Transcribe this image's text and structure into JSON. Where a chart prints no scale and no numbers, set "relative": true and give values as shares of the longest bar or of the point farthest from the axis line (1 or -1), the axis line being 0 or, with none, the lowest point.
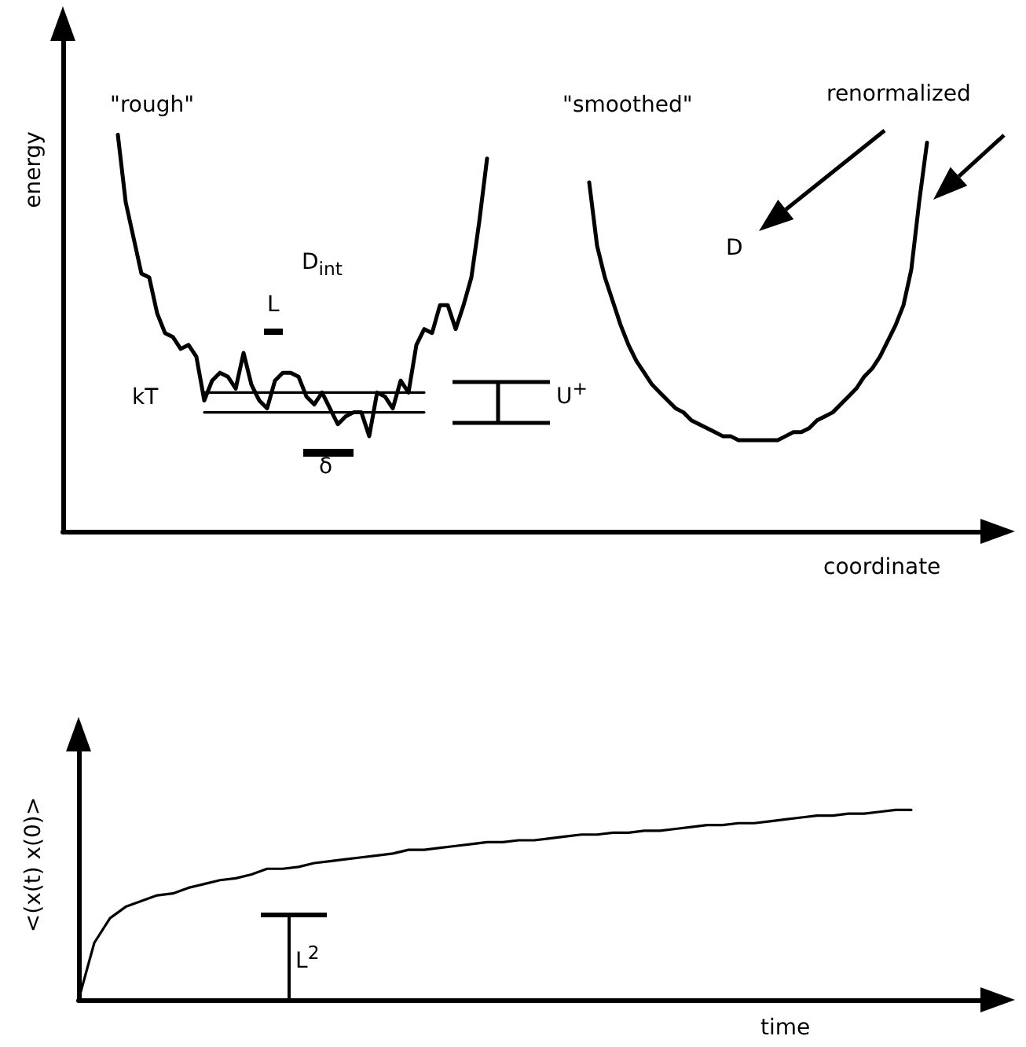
{
  "chart_data": [
    {
      "type": "line",
      "relative": true,
      "xlabel": "coordinate",
      "ylabel": "energy",
      "marker": "none",
      "categories": [
        null,
        null,
        null,
        null,
        null,
        null,
        null,
        null,
        null,
        null,
        null,
        null,
        null,
        null,
        null,
        null,
        null,
        null,
        null,
        null,
        null,
        null,
        null,
        null,
        null,
        null,
        null,
        null,
        null,
        null,
        null,
        null,
        null,
        null,
        null,
        null,
        null,
        null,
        null,
        null,
        null,
        null,
        null,
        null,
        null,
        null,
        null,
        null,
        null,
        null,
        null,
        null,
        null,
        null,
        null,
        null,
        null,
        null,
        null,
        null,
        null,
        null,
        null,
        null,
        null,
        null,
        null,
        null,
        null,
        null,
        null,
        null,
        null,
        null,
        null,
        null,
        null,
        null,
        null,
        null,
        null,
        null,
        null,
        null,
        null,
        null,
        null,
        null,
        null,
        null,
        null,
        null,
        null,
        null,
        null,
        null,
        null,
        null,
        null,
        null,
        null,
        null,
        null,
        null,
        null,
        null,
        null,
        null,
        null,
        null,
        null,
        null,
        null,
        null,
        null,
        null,
        null,
        null,
        null,
        null,
        null
      ],
      "series": [
        {
          "color": "#000000",
          "values": [
            null,
            null,
            null,
            null,
            null,
            null,
            null,
            1,
            0.83,
            0.74,
            0.65,
            0.64,
            0.55,
            0.5,
            0.49,
            0.46,
            0.47,
            0.44,
            0.33,
            0.38,
            0.4,
            0.39,
            0.36,
            0.45,
            0.37,
            0.33,
            0.31,
            0.38,
            0.4,
            0.4,
            0.39,
            0.34,
            0.32,
            0.35,
            0.31,
            0.27,
            0.29,
            0.3,
            0.3,
            0.24,
            0.35,
            0.34,
            0.31,
            0.38,
            0.35,
            0.47,
            0.51,
            0.5,
            0.57,
            0.57,
            0.51,
            0.57,
            0.64,
            0.78,
            0.94,
            null,
            null,
            null,
            null,
            null,
            null,
            null,
            null,
            null,
            null,
            null,
            null,
            null,
            null,
            null,
            null,
            null,
            null,
            null,
            null,
            null,
            null,
            null,
            null,
            null,
            null,
            null,
            null,
            null,
            null,
            null,
            null,
            null,
            null,
            null,
            null,
            null,
            null,
            null,
            null,
            null,
            null,
            null,
            null,
            null,
            null,
            null,
            null,
            null,
            null,
            null,
            null,
            null,
            null,
            null,
            null,
            null,
            null,
            null,
            null,
            null,
            null,
            null,
            null,
            null,
            null
          ]
        },
        {
          "color": "#000000",
          "values": [
            null,
            null,
            null,
            null,
            null,
            null,
            null,
            null,
            null,
            null,
            null,
            null,
            null,
            null,
            null,
            null,
            null,
            null,
            null,
            null,
            null,
            null,
            null,
            null,
            null,
            null,
            null,
            null,
            null,
            null,
            null,
            null,
            null,
            null,
            null,
            null,
            null,
            null,
            null,
            null,
            null,
            null,
            null,
            null,
            null,
            null,
            null,
            null,
            null,
            null,
            null,
            null,
            null,
            null,
            null,
            null,
            null,
            null,
            null,
            null,
            null,
            null,
            null,
            null,
            null,
            null,
            null,
            0.88,
            0.72,
            0.64,
            0.58,
            0.52,
            0.47,
            0.43,
            0.4,
            0.37,
            0.35,
            0.33,
            0.31,
            0.3,
            0.28,
            0.27,
            0.26,
            0.25,
            0.24,
            0.24,
            0.23,
            0.23,
            0.23,
            0.23,
            0.23,
            0.23,
            0.24,
            0.25,
            0.25,
            0.26,
            0.28,
            0.29,
            0.3,
            0.32,
            0.34,
            0.36,
            0.39,
            0.41,
            0.44,
            0.48,
            0.52,
            0.57,
            0.66,
            0.83,
            0.98,
            null,
            null,
            null,
            null,
            null,
            null,
            null,
            null,
            null,
            null
          ]
        },
        {
          "color": "#000000",
          "values": [
            null,
            null,
            null,
            null,
            null,
            null,
            null,
            null,
            null,
            null,
            null,
            null,
            null,
            null,
            null,
            null,
            null,
            null,
            0.35,
            0.35,
            0.35,
            0.35,
            0.35,
            0.35,
            0.35,
            0.35,
            0.35,
            0.35,
            0.35,
            0.35,
            0.35,
            0.35,
            0.35,
            0.35,
            0.35,
            0.35,
            0.35,
            0.35,
            0.35,
            0.35,
            0.35,
            0.35,
            0.35,
            0.35,
            0.35,
            0.35,
            0.35,
            null,
            null,
            null,
            null,
            null,
            null,
            null,
            null,
            null,
            null,
            null,
            null,
            null,
            null,
            null,
            null,
            null,
            null,
            null,
            null,
            null,
            null,
            null,
            null,
            null,
            null,
            null,
            null,
            null,
            null,
            null,
            null,
            null,
            null,
            null,
            null,
            null,
            null,
            null,
            null,
            null,
            null,
            null,
            null,
            null,
            null,
            null,
            null,
            null,
            null,
            null,
            null,
            null,
            null,
            null,
            null,
            null,
            null,
            null,
            null,
            null,
            null,
            null,
            null,
            null,
            null,
            null,
            null,
            null,
            null,
            null,
            null,
            null,
            null
          ]
        },
        {
          "color": "#000000",
          "values": [
            null,
            null,
            null,
            null,
            null,
            null,
            null,
            null,
            null,
            null,
            null,
            null,
            null,
            null,
            null,
            null,
            null,
            null,
            0.3,
            0.3,
            0.3,
            0.3,
            0.3,
            0.3,
            0.3,
            0.3,
            0.3,
            0.3,
            0.3,
            0.3,
            0.3,
            0.3,
            0.3,
            0.3,
            0.3,
            0.3,
            0.3,
            0.3,
            0.3,
            0.3,
            0.3,
            0.3,
            0.3,
            0.3,
            0.3,
            0.3,
            0.3,
            null,
            null,
            null,
            null,
            null,
            null,
            null,
            null,
            null,
            null,
            null,
            null,
            null,
            null,
            null,
            null,
            null,
            null,
            null,
            null,
            null,
            null,
            null,
            null,
            null,
            null,
            null,
            null,
            null,
            null,
            null,
            null,
            null,
            null,
            null,
            null,
            null,
            null,
            null,
            null,
            null,
            null,
            null,
            null,
            null,
            null,
            null,
            null,
            null,
            null,
            null,
            null,
            null,
            null,
            null,
            null,
            null,
            null,
            null,
            null,
            null,
            null,
            null,
            null,
            null,
            null,
            null,
            null,
            null,
            null,
            null,
            null,
            null,
            null
          ]
        }
      ],
      "annotations": [
        "\"rough\"",
        "\"smoothed\"",
        "renormalized",
        "D$_{int}$",
        "L",
        "kT",
        "δ",
        "U$^{+}$",
        "D"
      ]
    },
    {
      "type": "line",
      "relative": true,
      "xlabel": "time",
      "ylabel": "<(x(t) x(0)>",
      "marker": "none",
      "categories": [
        null,
        null,
        null,
        null,
        null,
        null,
        null,
        null,
        null,
        null,
        null,
        null,
        null,
        null,
        null,
        null,
        null,
        null,
        null,
        null,
        null,
        null,
        null,
        null,
        null,
        null,
        null,
        null,
        null,
        null,
        null,
        null,
        null,
        null,
        null,
        null,
        null,
        null,
        null,
        null,
        null,
        null,
        null,
        null,
        null,
        null,
        null,
        null,
        null,
        null,
        null,
        null,
        null,
        null,
        null,
        null,
        null,
        null,
        null,
        null
      ],
      "series": [
        {
          "color": "#000000",
          "values": [
            0,
            0.3,
            0.43,
            0.49,
            0.52,
            0.55,
            0.56,
            0.59,
            0.61,
            0.63,
            0.64,
            0.66,
            0.69,
            0.69,
            0.7,
            0.72,
            0.73,
            0.74,
            0.75,
            0.76,
            0.77,
            0.79,
            0.79,
            0.8,
            0.81,
            0.82,
            0.83,
            0.83,
            0.84,
            0.84,
            0.85,
            0.86,
            0.87,
            0.87,
            0.88,
            0.88,
            0.89,
            0.89,
            0.9,
            0.91,
            0.92,
            0.92,
            0.93,
            0.93,
            0.94,
            0.95,
            0.96,
            0.97,
            0.97,
            0.98,
            0.98,
            0.99,
            1,
            1,
            null,
            null,
            null,
            null,
            null,
            null
          ]
        }
      ],
      "annotations": [
        "L$^{2}$"
      ]
    }
  ]
}
